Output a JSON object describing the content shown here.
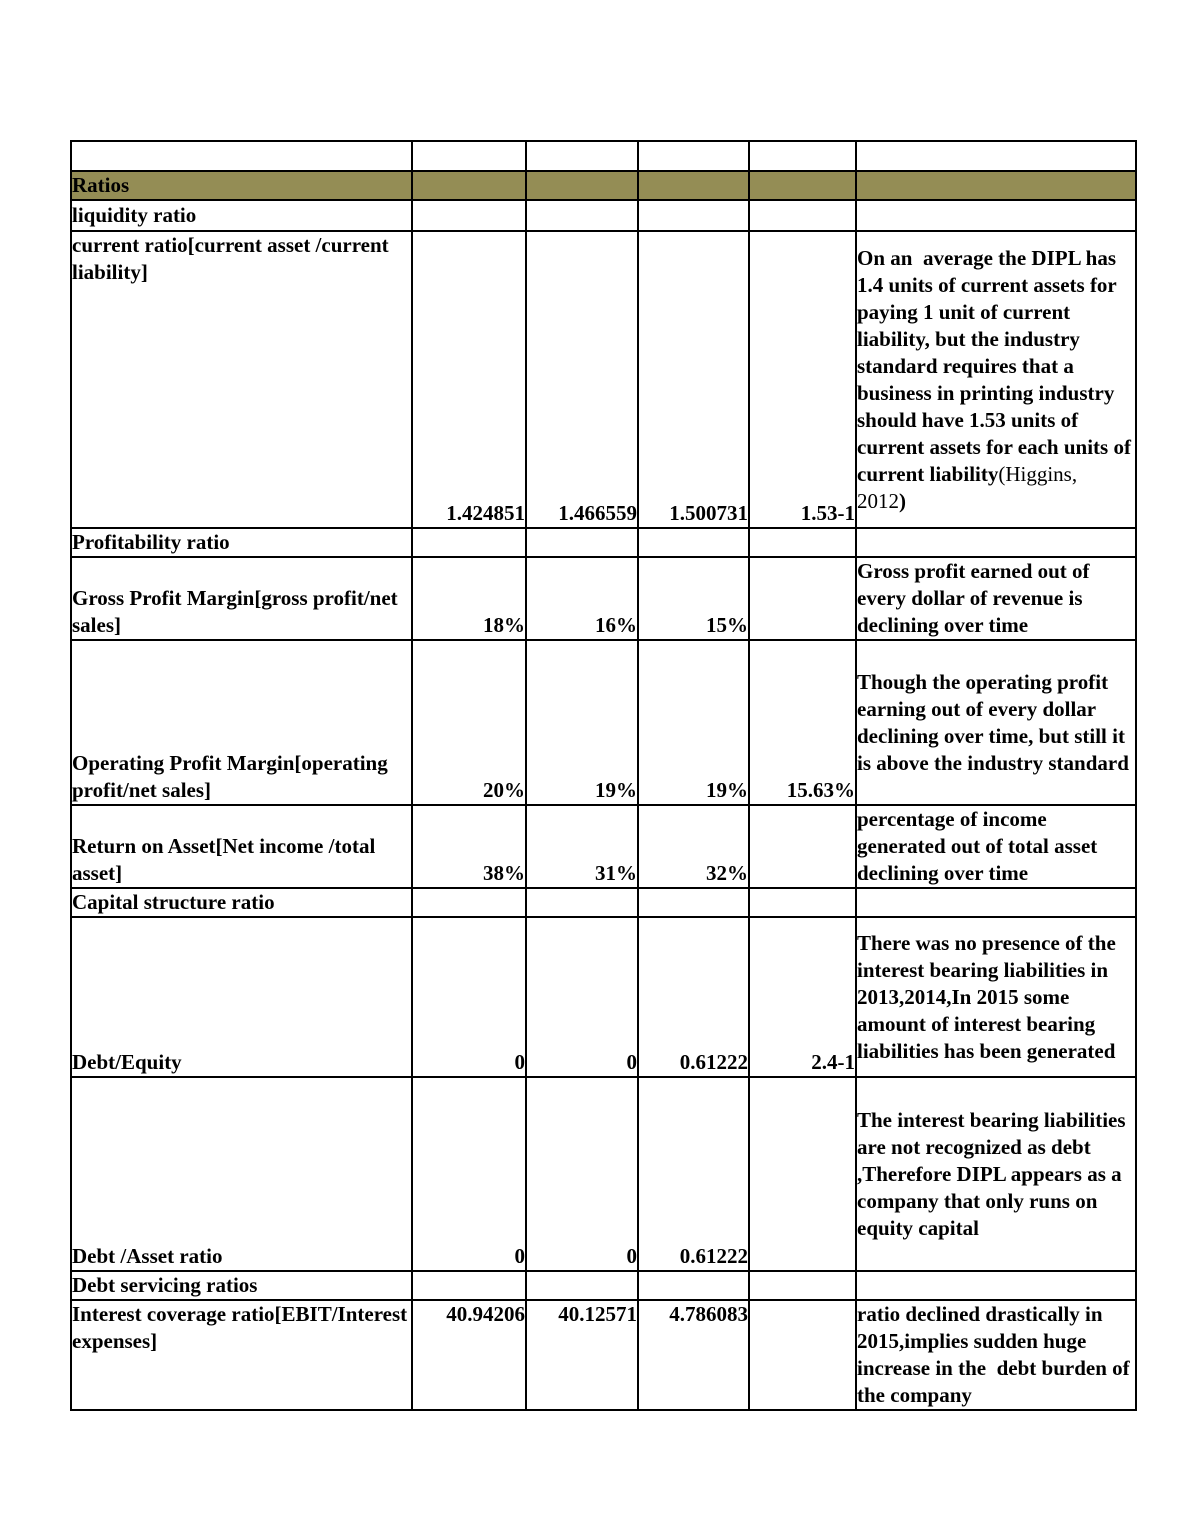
{
  "colors": {
    "accent": "#948d55",
    "border": "#000000",
    "text": "#000000",
    "page_background": "#ffffff"
  },
  "table": {
    "rows": [
      {
        "type": "empty"
      },
      {
        "type": "title",
        "label": "Ratios"
      },
      {
        "type": "section",
        "label": "liquidity ratio"
      },
      {
        "type": "data",
        "variant": "label-top",
        "label": "current ratio[current asset /current liability]",
        "values": [
          "1.424851",
          "1.466559",
          "1.500731",
          "1.53-1"
        ],
        "comment": [
          {
            "text": "On an  average the DIPL has 1.4 units of current assets for paying 1 unit of current liability, but the industry standard requires that a business in printing industry should have 1.53 units of current assets for each units of current liability",
            "bold": true
          },
          {
            "text": "(Higgins,  2012",
            "bold": false
          },
          {
            "text": ")",
            "bold": true
          }
        ]
      },
      {
        "type": "section",
        "label": "Profitability ratio"
      },
      {
        "type": "data",
        "variant": "label-bottom",
        "label": "Gross Profit Margin[gross profit/net sales]",
        "values": [
          "18%",
          "16%",
          "15%",
          ""
        ],
        "comment": [
          {
            "text": "Gross profit earned out of every dollar of revenue is declining over time",
            "bold": true
          }
        ]
      },
      {
        "type": "data",
        "variant": "label-bottom",
        "label": "Operating Profit Margin[operating profit/net sales]",
        "values": [
          "20%",
          "19%",
          "19%",
          "15.63%"
        ],
        "comment": [
          {
            "text": "Though the operating profit earning out of every dollar declining over time, but still it is above the industry standard",
            "bold": true
          }
        ]
      },
      {
        "type": "data",
        "variant": "label-bottom",
        "label": "Return on Asset[Net income /total asset]",
        "values": [
          "38%",
          "31%",
          "32%",
          ""
        ],
        "comment": [
          {
            "text": "percentage of income generated out of total asset declining over time",
            "bold": true
          }
        ]
      },
      {
        "type": "section",
        "label": "Capital structure ratio"
      },
      {
        "type": "data",
        "variant": "label-bottom",
        "label": "Debt/Equity",
        "values": [
          "0",
          "0",
          "0.61222",
          "2.4-1"
        ],
        "comment": [
          {
            "text": "There was no presence of the interest bearing liabilities in 2013,2014,In 2015 some amount of interest bearing liabilities has been generated",
            "bold": true
          }
        ]
      },
      {
        "type": "data",
        "variant": "label-bottom",
        "label": "Debt /Asset ratio",
        "values": [
          "0",
          "0",
          "0.61222",
          ""
        ],
        "comment": [
          {
            "text": "The interest bearing liabilities are not recognized as debt ,Therefore DIPL appears as a company that only runs on equity capital",
            "bold": true
          }
        ]
      },
      {
        "type": "section",
        "label": "Debt servicing ratios"
      },
      {
        "type": "data",
        "variant": "all-top",
        "label": "Interest coverage ratio[EBIT/Interest expenses]",
        "values": [
          "40.94206",
          "40.12571",
          "4.786083",
          ""
        ],
        "comment": [
          {
            "text": "ratio declined drastically in 2015,implies sudden huge increase in the  debt burden of the company",
            "bold": true
          }
        ]
      }
    ]
  }
}
